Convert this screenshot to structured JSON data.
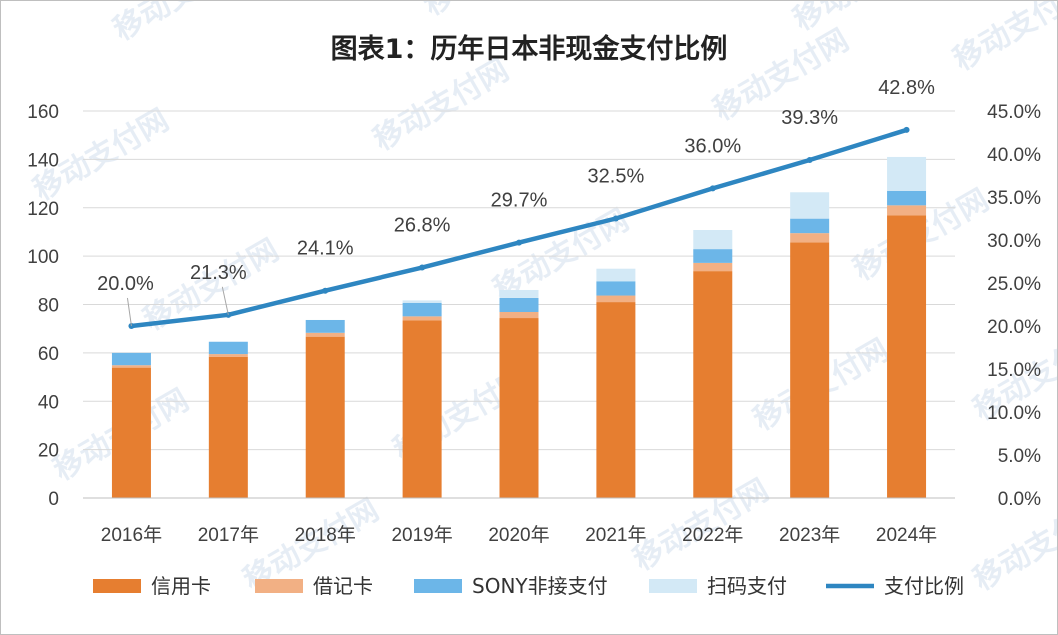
{
  "chart_data": {
    "type": "bar",
    "stacked": true,
    "title": "图表1：历年日本非现金支付比例",
    "categories": [
      "2016年",
      "2017年",
      "2018年",
      "2019年",
      "2020年",
      "2021年",
      "2022年",
      "2023年",
      "2024年"
    ],
    "series": [
      {
        "name": "信用卡",
        "kind": "bar",
        "color": "#E67E30",
        "values": [
          53.9,
          58.4,
          66.7,
          73.4,
          74.4,
          81.0,
          93.8,
          105.7,
          116.9
        ]
      },
      {
        "name": "借记卡",
        "kind": "bar",
        "color": "#F2B084",
        "values": [
          1.0,
          1.1,
          1.6,
          1.7,
          2.5,
          2.7,
          3.4,
          3.8,
          4.1
        ]
      },
      {
        "name": "SONY非接支付",
        "kind": "bar",
        "color": "#6CB6E8",
        "values": [
          5.1,
          5.1,
          5.3,
          5.6,
          5.8,
          5.9,
          5.7,
          6.0,
          6.0
        ]
      },
      {
        "name": "扫码支付",
        "kind": "bar",
        "color": "#D3E9F6",
        "values": [
          0.0,
          0.0,
          0.0,
          1.0,
          3.3,
          5.2,
          7.9,
          10.9,
          14.0
        ]
      },
      {
        "name": "支付比例",
        "kind": "line",
        "axis": "right",
        "color": "#2E86C1",
        "values": [
          20.0,
          21.3,
          24.1,
          26.8,
          29.7,
          32.5,
          36.0,
          39.3,
          42.8
        ],
        "labels": [
          "20.0%",
          "21.3%",
          "24.1%",
          "26.8%",
          "29.7%",
          "32.5%",
          "36.0%",
          "39.3%",
          "42.8%"
        ]
      }
    ],
    "y_left": {
      "min": 0,
      "max": 160,
      "ticks": [
        "0",
        "20",
        "40",
        "60",
        "80",
        "100",
        "120",
        "140",
        "160"
      ]
    },
    "y_right": {
      "min": 0,
      "max": 45,
      "ticks": [
        "0.0%",
        "5.0%",
        "10.0%",
        "15.0%",
        "20.0%",
        "25.0%",
        "30.0%",
        "35.0%",
        "40.0%",
        "45.0%"
      ]
    },
    "grid": "horizontal",
    "legend_position": "bottom"
  },
  "watermark": "移动支付网",
  "colors": {
    "grid": "#d9d9d9",
    "axis": "#bfbfbf"
  }
}
